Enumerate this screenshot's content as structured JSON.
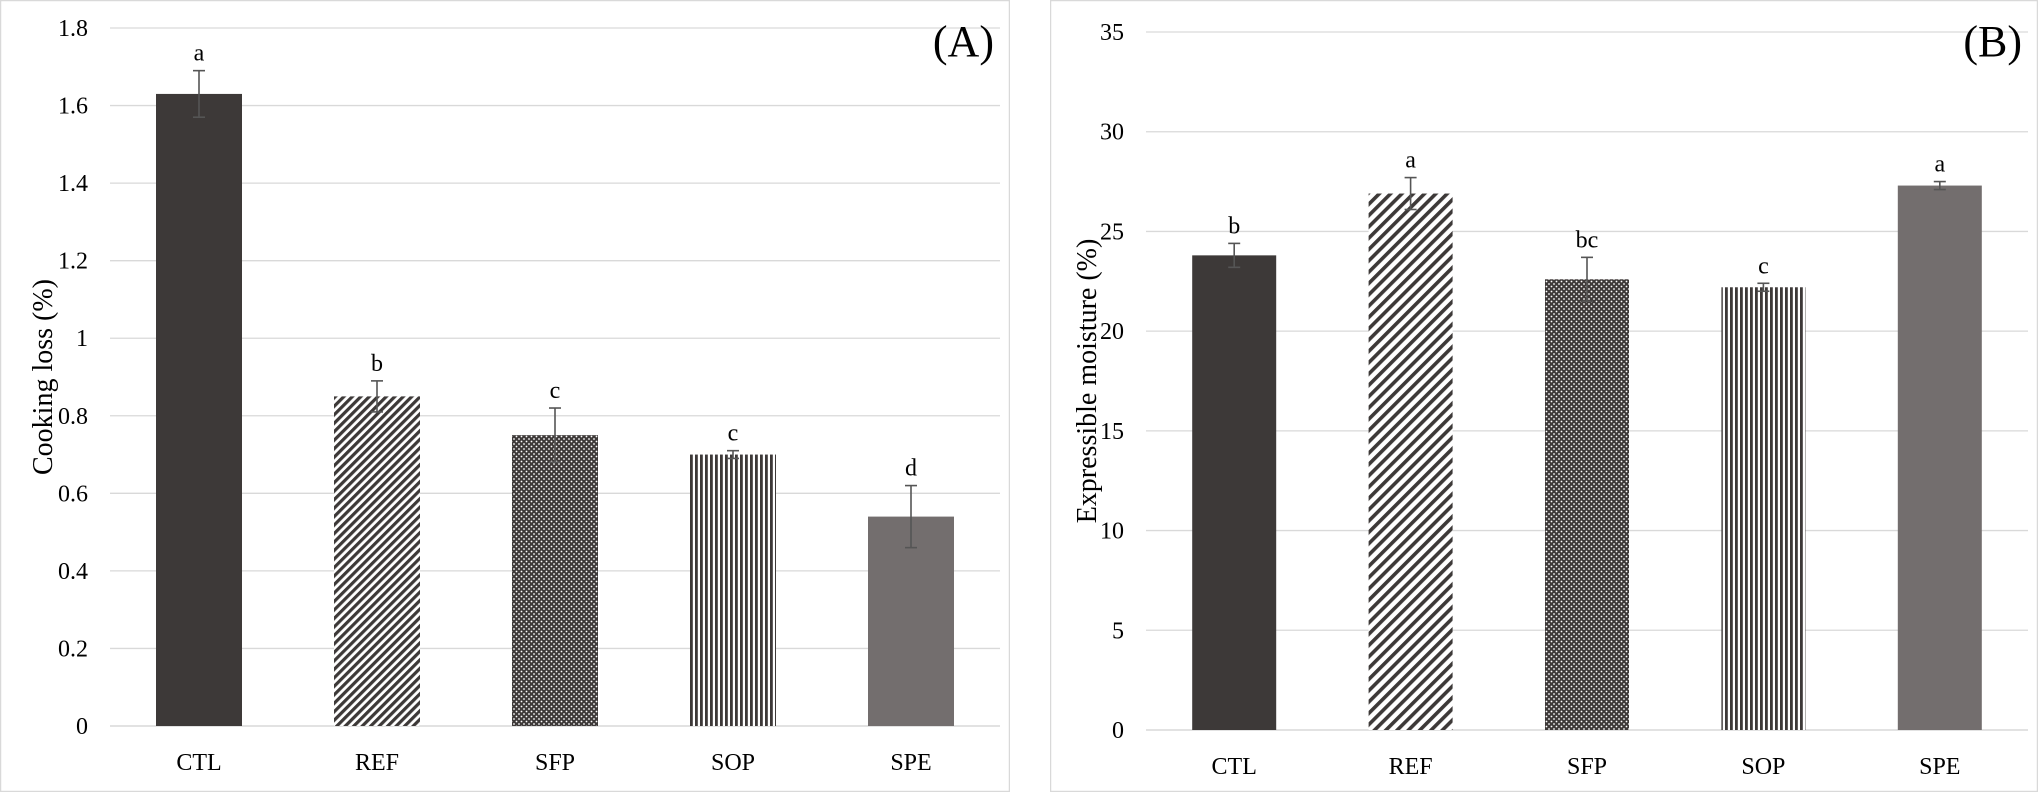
{
  "chart_data": [
    {
      "type": "bar",
      "panel_label": "(A)",
      "categories": [
        "CTL",
        "REF",
        "SFP",
        "SOP",
        "SPE"
      ],
      "values": [
        1.63,
        0.85,
        0.75,
        0.7,
        0.54
      ],
      "errors": [
        0.06,
        0.04,
        0.07,
        0.01,
        0.08
      ],
      "letters": [
        "a",
        "b",
        "c",
        "c",
        "d"
      ],
      "ylabel": "Cooking loss (%)",
      "xlabel": "",
      "ylim": [
        0,
        1.8
      ],
      "yticks": [
        "0",
        "0.2",
        "0.4",
        "0.6",
        "0.8",
        "1",
        "1.2",
        "1.4",
        "1.6",
        "1.8"
      ],
      "grid": true,
      "fills": [
        "#3d3938",
        "hatch-dense",
        "dots",
        "vlines",
        "#736e6e"
      ]
    },
    {
      "type": "bar",
      "panel_label": "(B)",
      "categories": [
        "CTL",
        "REF",
        "SFP",
        "SOP",
        "SPE"
      ],
      "values": [
        23.8,
        26.9,
        22.6,
        22.2,
        27.3
      ],
      "errors": [
        0.6,
        0.8,
        1.1,
        0.2,
        0.2
      ],
      "letters": [
        "b",
        "a",
        "bc",
        "c",
        "a"
      ],
      "ylabel": "Expressible moisture (%)",
      "xlabel": "",
      "ylim": [
        0,
        35
      ],
      "yticks": [
        "0",
        "5",
        "10",
        "15",
        "20",
        "25",
        "30",
        "35"
      ],
      "grid": true,
      "fills": [
        "#3d3938",
        "hatch-sparse",
        "dots",
        "vlines",
        "#736e6e"
      ]
    }
  ]
}
